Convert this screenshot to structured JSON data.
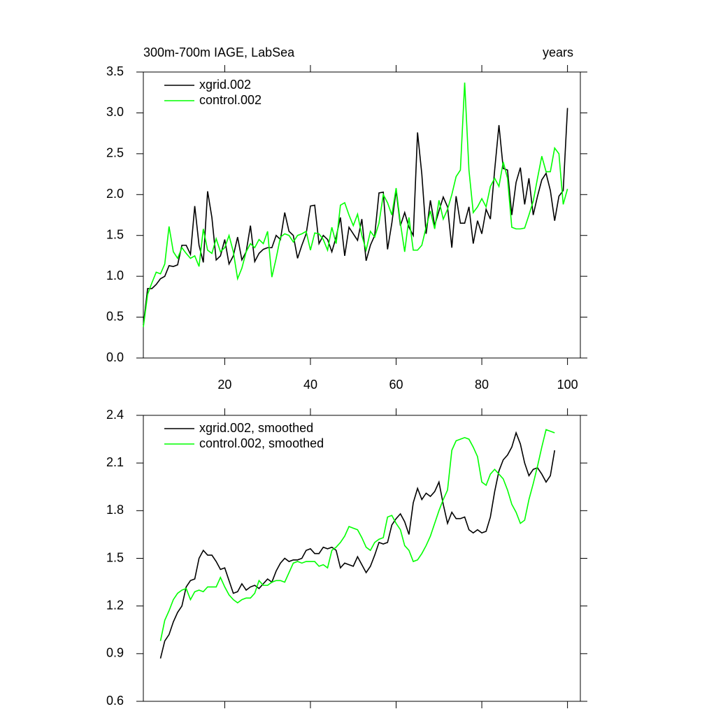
{
  "chart_data": [
    {
      "type": "line",
      "title": "300m-700m IAGE, LabSea",
      "right_title": "years",
      "x": [
        1,
        2,
        3,
        4,
        5,
        6,
        7,
        8,
        9,
        10,
        11,
        12,
        13,
        14,
        15,
        16,
        17,
        18,
        19,
        20,
        21,
        22,
        23,
        24,
        25,
        26,
        27,
        28,
        29,
        30,
        31,
        32,
        33,
        34,
        35,
        36,
        37,
        38,
        39,
        40,
        41,
        42,
        43,
        44,
        45,
        46,
        47,
        48,
        49,
        50,
        51,
        52,
        53,
        54,
        55,
        56,
        57,
        58,
        59,
        60,
        61,
        62,
        63,
        64,
        65,
        66,
        67,
        68,
        69,
        70,
        71,
        72,
        73,
        74,
        75,
        76,
        77,
        78,
        79,
        80,
        81,
        82,
        83,
        84,
        85,
        86,
        87,
        88,
        89,
        90,
        91,
        92,
        93,
        94,
        95,
        96,
        97,
        98,
        99,
        100
      ],
      "series": [
        {
          "name": "xgrid.002",
          "color": "#000000",
          "values": [
            0.4,
            0.85,
            0.85,
            0.9,
            0.97,
            1.0,
            1.13,
            1.12,
            1.14,
            1.38,
            1.38,
            1.27,
            1.86,
            1.38,
            1.17,
            2.04,
            1.72,
            1.2,
            1.25,
            1.45,
            1.15,
            1.25,
            1.48,
            1.2,
            1.3,
            1.62,
            1.18,
            1.28,
            1.33,
            1.35,
            1.35,
            1.5,
            1.45,
            1.78,
            1.55,
            1.5,
            1.22,
            1.38,
            1.52,
            1.86,
            1.87,
            1.4,
            1.5,
            1.45,
            1.3,
            1.48,
            1.72,
            1.25,
            1.6,
            1.52,
            1.44,
            1.7,
            1.19,
            1.38,
            1.5,
            2.02,
            2.03,
            1.33,
            1.65,
            2.05,
            1.62,
            1.78,
            1.6,
            1.5,
            2.76,
            2.25,
            1.52,
            1.93,
            1.62,
            1.8,
            1.97,
            1.85,
            1.35,
            1.98,
            1.65,
            1.65,
            1.85,
            1.4,
            1.68,
            1.52,
            1.82,
            1.7,
            2.3,
            2.85,
            2.32,
            2.3,
            1.75,
            2.15,
            2.33,
            1.88,
            2.2,
            1.75,
            1.98,
            2.18,
            2.26,
            2.05,
            1.68,
            1.98,
            2.05,
            3.06
          ]
        },
        {
          "name": "control.002",
          "color": "#00ff00",
          "values": [
            0.38,
            0.78,
            0.92,
            1.05,
            1.03,
            1.15,
            1.61,
            1.3,
            1.22,
            1.35,
            1.28,
            1.22,
            1.25,
            1.12,
            1.58,
            1.32,
            1.28,
            1.46,
            1.3,
            1.35,
            1.5,
            1.3,
            0.97,
            1.1,
            1.3,
            1.4,
            1.35,
            1.45,
            1.4,
            1.55,
            0.99,
            1.22,
            1.48,
            1.52,
            1.5,
            1.42,
            1.5,
            1.52,
            1.55,
            1.32,
            1.53,
            1.52,
            1.45,
            1.32,
            1.6,
            1.4,
            1.87,
            1.9,
            1.75,
            1.62,
            1.76,
            1.5,
            1.32,
            1.55,
            1.48,
            1.65,
            2.0,
            1.9,
            1.75,
            2.08,
            1.65,
            1.3,
            1.72,
            1.32,
            1.32,
            1.38,
            1.6,
            1.8,
            1.58,
            1.93,
            1.7,
            1.82,
            2.0,
            2.22,
            2.3,
            3.37,
            2.3,
            1.78,
            1.85,
            1.95,
            1.85,
            2.1,
            2.2,
            2.1,
            2.4,
            2.2,
            1.6,
            1.58,
            1.58,
            1.59,
            1.75,
            1.92,
            2.2,
            2.47,
            2.28,
            2.28,
            2.57,
            2.5,
            1.88,
            2.07
          ]
        }
      ],
      "xlim": [
        1,
        103
      ],
      "xticks": [
        20,
        40,
        60,
        80,
        100
      ],
      "show_xtick_labels": true,
      "ylim": [
        0,
        3.5
      ],
      "yticks": [
        {
          "value": 0,
          "label": "0.0"
        },
        0.5,
        {
          "value": 1,
          "label": "1.0"
        },
        1.5,
        {
          "value": 2,
          "label": "2.0"
        },
        2.5,
        {
          "value": 3,
          "label": "3.0"
        },
        3.5
      ],
      "legend": "upper left"
    },
    {
      "type": "line",
      "x": [
        5,
        6,
        7,
        8,
        9,
        10,
        11,
        12,
        13,
        14,
        15,
        16,
        17,
        18,
        19,
        20,
        21,
        22,
        23,
        24,
        25,
        26,
        27,
        28,
        29,
        30,
        31,
        32,
        33,
        34,
        35,
        36,
        37,
        38,
        39,
        40,
        41,
        42,
        43,
        44,
        45,
        46,
        47,
        48,
        49,
        50,
        51,
        52,
        53,
        54,
        55,
        56,
        57,
        58,
        59,
        60,
        61,
        62,
        63,
        64,
        65,
        66,
        67,
        68,
        69,
        70,
        71,
        72,
        73,
        74,
        75,
        76,
        77,
        78,
        79,
        80,
        81,
        82,
        83,
        84,
        85,
        86,
        87,
        88,
        89,
        90,
        91,
        92,
        93,
        94,
        95,
        96,
        97
      ],
      "series": [
        {
          "name": "xgrid.002, smoothed",
          "color": "#000000",
          "values": [
            0.87,
            0.98,
            1.02,
            1.1,
            1.16,
            1.2,
            1.32,
            1.36,
            1.37,
            1.5,
            1.55,
            1.52,
            1.52,
            1.48,
            1.43,
            1.44,
            1.36,
            1.28,
            1.29,
            1.34,
            1.3,
            1.32,
            1.33,
            1.31,
            1.34,
            1.37,
            1.35,
            1.42,
            1.47,
            1.5,
            1.48,
            1.49,
            1.49,
            1.5,
            1.55,
            1.56,
            1.53,
            1.53,
            1.57,
            1.56,
            1.57,
            1.55,
            1.44,
            1.47,
            1.46,
            1.45,
            1.51,
            1.46,
            1.41,
            1.45,
            1.52,
            1.6,
            1.59,
            1.6,
            1.71,
            1.75,
            1.78,
            1.73,
            1.65,
            1.85,
            1.94,
            1.87,
            1.91,
            1.89,
            1.92,
            1.98,
            1.84,
            1.72,
            1.79,
            1.75,
            1.75,
            1.76,
            1.68,
            1.66,
            1.68,
            1.66,
            1.67,
            1.76,
            1.92,
            2.05,
            2.12,
            2.15,
            2.2,
            2.29,
            2.22,
            2.1,
            2.02,
            2.06,
            2.07,
            2.03,
            1.98,
            2.02,
            2.18
          ]
        },
        {
          "name": "control.002, smoothed",
          "color": "#00ff00",
          "values": [
            0.98,
            1.11,
            1.17,
            1.24,
            1.28,
            1.3,
            1.31,
            1.24,
            1.29,
            1.3,
            1.29,
            1.32,
            1.32,
            1.32,
            1.38,
            1.32,
            1.27,
            1.24,
            1.22,
            1.24,
            1.25,
            1.25,
            1.28,
            1.36,
            1.33,
            1.33,
            1.35,
            1.36,
            1.36,
            1.35,
            1.41,
            1.47,
            1.48,
            1.47,
            1.48,
            1.48,
            1.48,
            1.45,
            1.46,
            1.44,
            1.55,
            1.57,
            1.6,
            1.64,
            1.7,
            1.69,
            1.68,
            1.63,
            1.57,
            1.55,
            1.6,
            1.62,
            1.63,
            1.76,
            1.77,
            1.72,
            1.68,
            1.58,
            1.55,
            1.48,
            1.49,
            1.53,
            1.58,
            1.64,
            1.72,
            1.8,
            1.87,
            1.93,
            2.18,
            2.24,
            2.25,
            2.26,
            2.25,
            2.2,
            2.14,
            1.98,
            1.96,
            2.03,
            2.06,
            2.03,
            2.0,
            1.93,
            1.84,
            1.79,
            1.72,
            1.74,
            1.87,
            1.97,
            2.08,
            2.2,
            2.31,
            2.3,
            2.29
          ]
        }
      ],
      "xlim": [
        1,
        103
      ],
      "xticks": [
        20,
        40,
        60,
        80,
        100
      ],
      "show_xtick_labels": false,
      "ylim": [
        0.6,
        2.4
      ],
      "yticks": [
        0.6,
        0.9,
        1.2,
        1.5,
        1.8,
        2.1,
        2.4
      ],
      "legend": "upper left"
    }
  ]
}
